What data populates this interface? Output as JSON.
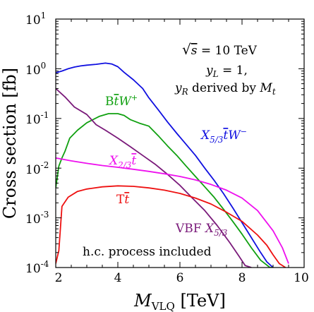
{
  "chart_data": {
    "type": "line",
    "xlabel": "M_VLQ [TeV]",
    "ylabel": "Cross section [fb]",
    "x_range": [
      2,
      10
    ],
    "y_range": [
      0.0001,
      10
    ],
    "y_scale": "log",
    "grid": false,
    "x_ticks": [
      "2",
      "4",
      "6",
      "8",
      "10"
    ],
    "y_tick_exponents": [
      "-4",
      "-3",
      "-2",
      "-1",
      "0",
      "1"
    ],
    "annotations": {
      "sqrt_s": "√s = 10 TeV",
      "yl": "y_L = 1,",
      "yr": "y_R derived by M_t",
      "note": "h.c. process included"
    },
    "series": [
      {
        "name": "X5/3 t̄ W⁻",
        "color": "#1010e0",
        "x": [
          2.0,
          2.2,
          2.4,
          2.6,
          2.8,
          3.0,
          3.3,
          3.6,
          3.8,
          4.0,
          4.2,
          4.5,
          4.8,
          5.0,
          5.3,
          5.6,
          5.9,
          6.2,
          6.5,
          6.8,
          7.1,
          7.4,
          7.7,
          8.0,
          8.3,
          8.6,
          8.8,
          9.0
        ],
        "y": [
          0.83,
          0.9,
          1.0,
          1.08,
          1.14,
          1.18,
          1.23,
          1.3,
          1.25,
          1.1,
          0.85,
          0.6,
          0.4,
          0.26,
          0.15,
          0.085,
          0.05,
          0.03,
          0.018,
          0.01,
          0.0057,
          0.0031,
          0.0016,
          0.0008,
          0.0004,
          0.0002,
          0.00013,
          0.0001
        ]
      },
      {
        "name": "B t̄ W⁺",
        "color": "#10a010",
        "x": [
          2.0,
          2.1,
          2.2,
          2.3,
          2.45,
          2.7,
          3.0,
          3.4,
          3.7,
          4.0,
          4.2,
          4.4,
          4.7,
          5.0,
          5.3,
          5.6,
          5.9,
          6.2,
          6.5,
          6.8,
          7.1,
          7.4,
          7.7,
          8.0,
          8.3,
          8.6,
          8.9,
          9.0
        ],
        "y": [
          0.004,
          0.011,
          0.016,
          0.022,
          0.04,
          0.058,
          0.082,
          0.11,
          0.125,
          0.125,
          0.115,
          0.095,
          0.08,
          0.07,
          0.045,
          0.028,
          0.018,
          0.011,
          0.0068,
          0.0042,
          0.0026,
          0.0015,
          0.00085,
          0.00047,
          0.00025,
          0.00014,
          0.0001,
          0.0001
        ]
      },
      {
        "name": "VBF X5/3",
        "color": "#7a1a7a",
        "x": [
          2.0,
          2.3,
          2.6,
          3.0,
          3.3,
          3.6,
          4.0,
          4.4,
          4.8,
          5.2,
          5.6,
          6.0,
          6.4,
          6.8,
          7.2,
          7.6,
          7.9,
          8.1,
          8.3
        ],
        "y": [
          0.4,
          0.27,
          0.17,
          0.12,
          0.075,
          0.058,
          0.04,
          0.027,
          0.018,
          0.012,
          0.0075,
          0.0045,
          0.0025,
          0.0014,
          0.0007,
          0.00032,
          0.00017,
          0.00011,
          0.0001
        ]
      },
      {
        "name": "X2/3 t̄",
        "color": "#ee10ee",
        "x": [
          2.0,
          2.5,
          3.0,
          3.5,
          4.0,
          4.5,
          5.0,
          5.5,
          6.0,
          6.5,
          7.0,
          7.5,
          8.0,
          8.5,
          9.0,
          9.3,
          9.5
        ],
        "y": [
          0.016,
          0.014,
          0.0125,
          0.0113,
          0.0104,
          0.0095,
          0.0086,
          0.0077,
          0.0068,
          0.0058,
          0.0047,
          0.0036,
          0.0025,
          0.0014,
          0.00055,
          0.00025,
          0.00012
        ]
      },
      {
        "name": "T t̄",
        "color": "#ee1010",
        "x": [
          2.0,
          2.1,
          2.2,
          2.4,
          2.7,
          3.0,
          3.5,
          4.0,
          4.5,
          5.0,
          5.5,
          6.0,
          6.5,
          7.0,
          7.5,
          8.0,
          8.5,
          8.8,
          9.0,
          9.2,
          9.4
        ],
        "y": [
          0.00012,
          0.00022,
          0.0017,
          0.0026,
          0.0034,
          0.0038,
          0.0042,
          0.0044,
          0.0043,
          0.004,
          0.0036,
          0.0031,
          0.0025,
          0.0019,
          0.0013,
          0.00085,
          0.00045,
          0.00028,
          0.00018,
          0.00012,
          0.0001
        ]
      }
    ]
  }
}
